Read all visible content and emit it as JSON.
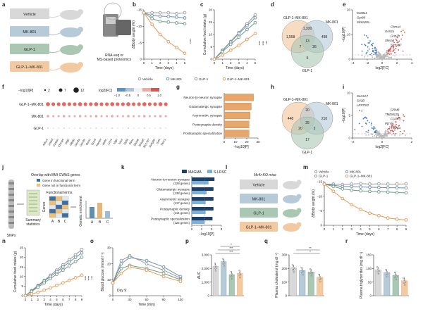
{
  "panels": [
    "a",
    "b",
    "c",
    "d",
    "e",
    "f",
    "g",
    "h",
    "i",
    "j",
    "k",
    "l",
    "m",
    "n",
    "o",
    "p",
    "q",
    "r"
  ],
  "colors": {
    "vehicle": "#9a9a9a",
    "mk801": "#6e8fa8",
    "glp1": "#6f9a86",
    "combo": "#e09a55",
    "grey_fill": "#d8d8d8",
    "blue_fill": "#b6cad8",
    "green_fill": "#aac7b4",
    "orange_fill": "#f2c9a0",
    "red": "#d9534f",
    "blue": "#3d7ab8"
  },
  "groups": [
    "Vehicle",
    "MK-801",
    "GLP-1",
    "GLP-1–MK-801"
  ],
  "a": {
    "caption": "RNA-seq or\nMS-based proteomics"
  },
  "legend_bc": [
    "Vehicle",
    "MK-801",
    "GLP-1",
    "GLP-1–MK-801"
  ],
  "b": {
    "ylabel": "ΔBody weight (%)",
    "xlabel": "Time (days)",
    "xticks": [
      "0",
      "1",
      "2",
      "3",
      "4",
      "5"
    ],
    "yticks": [
      "0",
      "−5",
      "−10",
      "−15"
    ],
    "sig": "****"
  },
  "c": {
    "ylabel": "Cumulative food intake (g)",
    "xlabel": "Time (days)",
    "xticks": [
      "0",
      "1",
      "2",
      "3",
      "4",
      "5"
    ],
    "yticks": [
      "0",
      "5",
      "10",
      "15",
      "20"
    ],
    "sig": [
      "****",
      "****",
      "***"
    ]
  },
  "d": {
    "labels": [
      "GLP-1–MK-801",
      "MK-801",
      "GLP-1"
    ],
    "counts": [
      "1,568",
      "1,330",
      "498",
      "13",
      "7",
      "26",
      "6"
    ]
  },
  "e": {
    "ylabel": "−log10[P]",
    "xlabel": "log2[FC]",
    "xticks": [
      "−4",
      "−2",
      "0",
      "2",
      "4"
    ],
    "yticks": [
      "0",
      "10",
      "20"
    ],
    "genes": [
      "S100a1",
      "Gpr88",
      "Slc6a20a",
      "Chrna4",
      "Grin2a",
      "Grin2b",
      "Shisa6",
      "Slc17a7"
    ]
  },
  "f": {
    "size_legend_title": "−log10[P]",
    "sizes": [
      "2",
      "7",
      "12"
    ],
    "fc_title": "log2[FC]",
    "fc_ticks": [
      "−1.0",
      "−0.5",
      "0",
      "0.5",
      "1.0"
    ],
    "rows": [
      "GLP-1–MK-801",
      "MK-801",
      "GLP-1"
    ],
    "cols": [
      "Adcy1",
      "Ankrd",
      "Caskin",
      "Chrna4",
      "Dlg2",
      "Dlgap",
      "Grin2a",
      "Grin2b",
      "Grm2",
      "Grm5",
      "Homer",
      "Iqsec",
      "Lrrc4",
      "Nlgn",
      "Nrxn",
      "Ppfia",
      "Rims",
      "Shank",
      "Shisa6",
      "Slc17a7",
      "Syngap",
      "Syt1",
      "Tanc1"
    ]
  },
  "g": {
    "terms": [
      "Neuron-to-neuron synapse",
      "Glutamatergic synapse",
      "Asymmetric synapse",
      "Postsynaptic density",
      "Postsynaptic specialization"
    ],
    "values": [
      26,
      24,
      23,
      22,
      22
    ],
    "xlabel": "−log10[P]",
    "xticks": [
      "0",
      "10",
      "20",
      "30"
    ]
  },
  "h": {
    "labels": [
      "GLP-1–MK-801",
      "MK-801",
      "GLP-1"
    ],
    "counts": [
      "448",
      "20",
      "210",
      "25",
      "20",
      "3",
      "17"
    ]
  },
  "i": {
    "ylabel": "−log10[P]",
    "xlabel": "log2[FC]",
    "xticks": [
      "−2",
      "0",
      "2"
    ],
    "yticks": [
      "0",
      "5",
      "10"
    ],
    "genes": [
      "SLC6A7",
      "SV2B",
      "LRRTM2",
      "GRM8",
      "TMEM119",
      "FGFR3",
      "PDYN",
      "TRPC4"
    ]
  },
  "j": {
    "title": "Overlap with BMI GWAS genes",
    "legend": [
      "Gene in functional term",
      "Gene not in functional term"
    ],
    "snps": "SNPs",
    "summary": "Summary statistics",
    "genes": "Genes",
    "functional": "Functional terms",
    "abc": [
      "A",
      "B",
      "C"
    ],
    "enrichment": "Genetic enrichment"
  },
  "k": {
    "legend": [
      "MAGMA",
      "S-LDSC"
    ],
    "terms": [
      "Neuron-to-neuron synapse",
      "Glutamatergic synapse",
      "Asymmetric synapse",
      "Postsynaptic density",
      "Postsynaptic specialization"
    ],
    "counts": [
      "(128 genes)",
      "(138 genes)",
      "(117 genes)",
      "(114 genes)",
      "(122 genes)"
    ],
    "magma": [
      2.3,
      2.2,
      2.2,
      2.2,
      2.1
    ],
    "sldsc": [
      1.7,
      1.5,
      1.4,
      1.4,
      1.3
    ],
    "xlabel": "−log10[P]",
    "xticks": [
      "0",
      "1",
      "2",
      "3"
    ]
  },
  "l": {
    "title": "Mc4r-KO mice"
  },
  "m": {
    "legend": [
      "Vehicle",
      "MK-801",
      "GLP-1",
      "GLP-1–MK-801"
    ],
    "ylabel": "ΔBody weight (%)",
    "xlabel": "Time (days)",
    "xticks": [
      "0",
      "1",
      "2",
      "3",
      "4",
      "5",
      "6",
      "7",
      "8",
      "9"
    ],
    "yticks": [
      "0",
      "−5",
      "−10",
      "−15"
    ]
  },
  "n": {
    "ylabel": "Cumulative food intake (g)",
    "xlabel": "Time (days)",
    "xticks": [
      "0",
      "1",
      "2",
      "3",
      "4",
      "5",
      "6",
      "7",
      "8",
      "9"
    ],
    "yticks": [
      "0",
      "5",
      "10",
      "15",
      "20",
      "25"
    ],
    "sig": [
      "****",
      "****",
      "***"
    ]
  },
  "o": {
    "ylabel": "Blood glucose (mmol l⁻¹)",
    "xlabel": "Time (min)",
    "xticks": [
      "0",
      "30",
      "60",
      "90",
      "120"
    ],
    "yticks": [
      "0",
      "10",
      "20",
      "30"
    ],
    "note": "Day 9"
  },
  "p": {
    "ylabel": "AUC",
    "yticks": [
      "0",
      "1,000",
      "2,000",
      "3,000"
    ],
    "values": [
      2150,
      2500,
      1550,
      1650
    ],
    "sig": [
      "***",
      "***",
      "*"
    ]
  },
  "q": {
    "ylabel": "Plasma cholesterol (mg dl⁻¹)",
    "yticks": [
      "0",
      "100",
      "200",
      "300"
    ],
    "values": [
      205,
      185,
      175,
      135
    ],
    "sig": [
      "*",
      "**"
    ]
  },
  "r": {
    "ylabel": "Plasma triglycerides (mg dl⁻¹)",
    "yticks": [
      "0",
      "50",
      "100",
      "150"
    ],
    "values": [
      95,
      85,
      75,
      55
    ]
  },
  "chart_data": [
    {
      "type": "line",
      "id": "b",
      "x": [
        0,
        1,
        2,
        3,
        4,
        5
      ],
      "series": [
        {
          "name": "Vehicle",
          "values": [
            0,
            0,
            0,
            0,
            -0.3,
            0
          ]
        },
        {
          "name": "MK-801",
          "values": [
            0,
            -1,
            -1.2,
            -1.3,
            -1.5,
            -1.8
          ]
        },
        {
          "name": "GLP-1",
          "values": [
            0,
            -2,
            -3,
            -3.2,
            -3.5,
            -3.8
          ]
        },
        {
          "name": "GLP-1–MK-801",
          "values": [
            0,
            -4,
            -7.5,
            -10,
            -12,
            -14
          ]
        }
      ],
      "xlabel": "Time (days)",
      "ylabel": "ΔBody weight (%)",
      "ylim": [
        -16,
        1
      ]
    },
    {
      "type": "line",
      "id": "c",
      "x": [
        0,
        1,
        2,
        3,
        4,
        5
      ],
      "series": [
        {
          "name": "Vehicle",
          "values": [
            0,
            4.5,
            9,
            13.5,
            18,
            22.5
          ]
        },
        {
          "name": "MK-801",
          "values": [
            0,
            4.3,
            8.7,
            13,
            17,
            21
          ]
        },
        {
          "name": "GLP-1",
          "values": [
            0,
            3.8,
            7.5,
            11.2,
            15,
            18.5
          ]
        },
        {
          "name": "GLP-1–MK-801",
          "values": [
            0,
            2,
            4.5,
            7,
            10,
            13
          ]
        }
      ],
      "xlabel": "Time (days)",
      "ylabel": "Cumulative food intake (g)",
      "ylim": [
        0,
        25
      ]
    },
    {
      "type": "line",
      "id": "m",
      "x": [
        0,
        1,
        2,
        3,
        4,
        5,
        6,
        7,
        8,
        9
      ],
      "series": [
        {
          "name": "Vehicle",
          "values": [
            0,
            0,
            -0.2,
            0,
            0.2,
            0,
            0.1,
            0,
            0,
            0.1
          ]
        },
        {
          "name": "MK-801",
          "values": [
            0,
            -0.5,
            -1,
            -1,
            -1.2,
            -1.3,
            -1.4,
            -1.5,
            -1.5,
            -1.6
          ]
        },
        {
          "name": "GLP-1",
          "values": [
            0,
            -1,
            -2,
            -2.5,
            -2.8,
            -3,
            -3.2,
            -3.3,
            -3.5,
            -3.6
          ]
        },
        {
          "name": "GLP-1–MK-801",
          "values": [
            0,
            -3,
            -6,
            -8.5,
            -10.5,
            -12,
            -13,
            -14,
            -14.5,
            -14.8
          ]
        }
      ],
      "xlabel": "Time (days)",
      "ylabel": "ΔBody weight (%)",
      "ylim": [
        -17,
        1
      ]
    },
    {
      "type": "line",
      "id": "n",
      "x": [
        0,
        1,
        2,
        3,
        4,
        5,
        6,
        7,
        8,
        9
      ],
      "series": [
        {
          "name": "Vehicle",
          "values": [
            0,
            3,
            6,
            9,
            12,
            15,
            18,
            21,
            24,
            27
          ]
        },
        {
          "name": "MK-801",
          "values": [
            0,
            2.8,
            5.6,
            8.5,
            11.3,
            14,
            16.8,
            19.6,
            22.4,
            25
          ]
        },
        {
          "name": "GLP-1",
          "values": [
            0,
            2.5,
            5,
            7.5,
            10,
            12.5,
            15,
            17.5,
            20,
            22.5
          ]
        },
        {
          "name": "GLP-1–MK-801",
          "values": [
            0,
            1,
            2,
            3.2,
            4.5,
            6,
            7.5,
            9,
            10.5,
            12
          ]
        }
      ],
      "xlabel": "Time (days)",
      "ylabel": "Cumulative food intake (g)",
      "ylim": [
        0,
        28
      ]
    },
    {
      "type": "line",
      "id": "o",
      "x": [
        0,
        15,
        30,
        60,
        90,
        120
      ],
      "series": [
        {
          "name": "Vehicle",
          "values": [
            8,
            22,
            25,
            20,
            16,
            11
          ]
        },
        {
          "name": "MK-801",
          "values": [
            8,
            20,
            24,
            22,
            18,
            12
          ]
        },
        {
          "name": "GLP-1",
          "values": [
            8,
            17,
            19,
            17,
            14,
            10
          ]
        },
        {
          "name": "GLP-1–MK-801",
          "values": [
            8,
            14,
            18,
            16,
            12,
            9
          ]
        }
      ],
      "xlabel": "Time (min)",
      "ylabel": "Blood glucose",
      "ylim": [
        0,
        30
      ]
    },
    {
      "type": "bar",
      "id": "g",
      "categories": [
        "Neuron-to-neuron synapse",
        "Glutamatergic synapse",
        "Asymmetric synapse",
        "Postsynaptic density",
        "Postsynaptic specialization"
      ],
      "values": [
        26,
        24,
        23,
        22,
        22
      ],
      "xlabel": "−log10[P]"
    },
    {
      "type": "bar",
      "id": "k",
      "categories": [
        "Neuron-to-neuron synapse",
        "Glutamatergic synapse",
        "Asymmetric synapse",
        "Postsynaptic density",
        "Postsynaptic specialization"
      ],
      "series": [
        {
          "name": "MAGMA",
          "values": [
            2.3,
            2.2,
            2.2,
            2.2,
            2.1
          ]
        },
        {
          "name": "S-LDSC",
          "values": [
            1.7,
            1.5,
            1.4,
            1.4,
            1.3
          ]
        }
      ],
      "xlabel": "−log10[P]"
    },
    {
      "type": "bar",
      "id": "p",
      "categories": [
        "Vehicle",
        "MK-801",
        "GLP-1",
        "GLP-1–MK-801"
      ],
      "values": [
        2150,
        2500,
        1550,
        1650
      ],
      "ylabel": "AUC"
    },
    {
      "type": "bar",
      "id": "q",
      "categories": [
        "Vehicle",
        "MK-801",
        "GLP-1",
        "GLP-1–MK-801"
      ],
      "values": [
        205,
        185,
        175,
        135
      ],
      "ylabel": "Plasma cholesterol"
    },
    {
      "type": "bar",
      "id": "r",
      "categories": [
        "Vehicle",
        "MK-801",
        "GLP-1",
        "GLP-1–MK-801"
      ],
      "values": [
        95,
        85,
        75,
        55
      ],
      "ylabel": "Plasma triglycerides"
    }
  ]
}
